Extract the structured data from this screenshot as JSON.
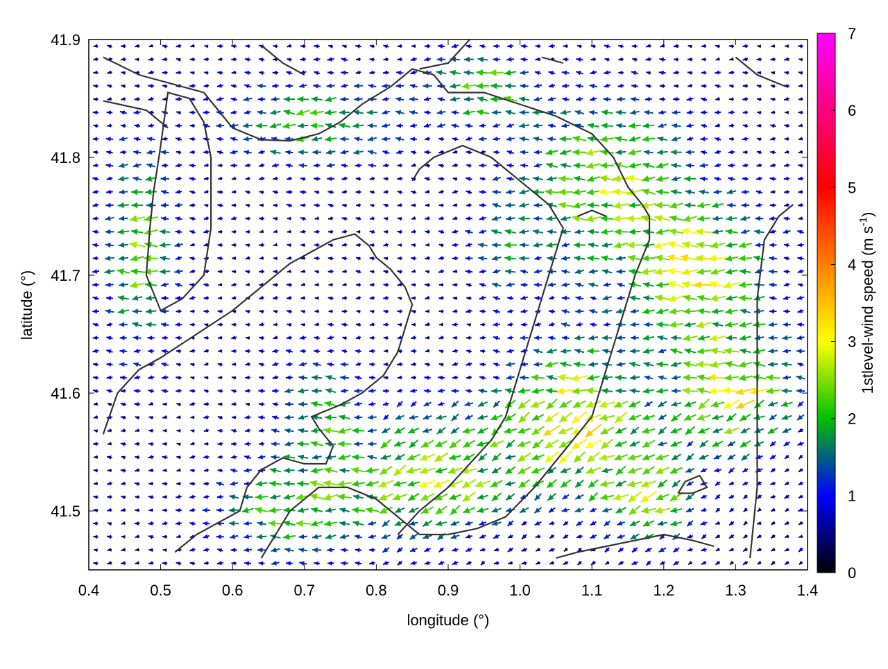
{
  "chart_data": {
    "type": "vector-field",
    "xlabel": "longitude (°)",
    "ylabel": "latitude (°)",
    "xlim": [
      0.4,
      1.4
    ],
    "ylim": [
      41.45,
      41.9
    ],
    "xticks": [
      "0.4",
      "0.5",
      "0.6",
      "0.7",
      "0.8",
      "0.9",
      "1.0",
      "1.1",
      "1.2",
      "1.3",
      "1.4"
    ],
    "yticks": [
      "41.5",
      "41.6",
      "41.7",
      "41.8",
      "41.9"
    ],
    "colorbar": {
      "label": "1stlevel-wind speed (m s",
      "label_sup": "-1",
      "label_end": ")",
      "range": [
        0,
        7
      ],
      "ticks": [
        "0",
        "1",
        "2",
        "3",
        "4",
        "5",
        "6",
        "7"
      ],
      "stops": [
        "#000000",
        "#0000ff",
        "#00c000",
        "#ffff00",
        "#ff0000",
        "#ff00ff"
      ]
    },
    "field": {
      "prevailing_direction": "westward",
      "max_speed": 4.5,
      "typical_speed": 1.5
    }
  }
}
